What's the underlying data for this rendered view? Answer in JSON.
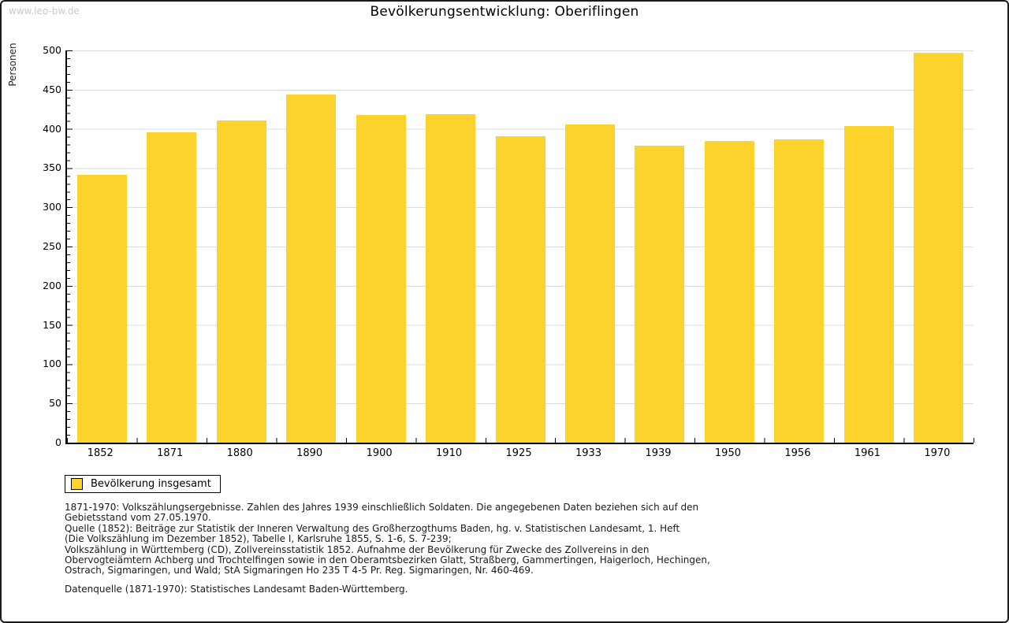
{
  "watermark": "www.leo-bw.de",
  "chart_data": {
    "type": "bar",
    "title": "Bevölkerungsentwicklung: Oberiflingen",
    "ylabel": "Personen",
    "xlabel": "",
    "categories": [
      "1852",
      "1871",
      "1880",
      "1890",
      "1900",
      "1910",
      "1925",
      "1933",
      "1939",
      "1950",
      "1956",
      "1961",
      "1970"
    ],
    "values": [
      341,
      396,
      411,
      444,
      418,
      419,
      391,
      406,
      379,
      385,
      387,
      404,
      497
    ],
    "ylim": [
      0,
      500
    ],
    "ytick_step": 50,
    "minor_tick_step": 10,
    "grid": "horizontal-gridlines-on",
    "legend_position": "bottom-left",
    "legend": {
      "label": "Bevölkerung insgesamt"
    },
    "bar_color": "#FCD32D"
  },
  "colors": {
    "bar": "#FCD32D",
    "gridline": "#DCDCDC",
    "axis": "#000000",
    "watermark": "#C9C9C9",
    "frame_border": "#1A1A1A"
  },
  "footnotes": {
    "lines": [
      "1871-1970: Volkszählungsergebnisse. Zahlen des Jahres 1939 einschließlich Soldaten. Die angegebenen Daten beziehen sich auf den",
      "Gebietsstand vom 27.05.1970.",
      "Quelle (1852): Beiträge zur Statistik der Inneren Verwaltung des Großherzogthums Baden, hg. v. Statistischen Landesamt, 1. Heft",
      "(Die Volkszählung im Dezember 1852), Tabelle I, Karlsruhe 1855, S. 1-6, S. 7-239;",
      "Volkszählung in Württemberg (CD), Zollvereinsstatistik 1852. Aufnahme der Bevölkerung für Zwecke des Zollvereins in den",
      "Obervogteiämtern Achberg und Trochtelfingen sowie in den Oberamtsbezirken Glatt, Straßberg, Gammertingen, Haigerloch, Hechingen,",
      "Ostrach, Sigmaringen, und Wald; StA Sigmaringen Ho 235 T 4-5 Pr. Reg. Sigmaringen, Nr. 460-469."
    ],
    "datasource": "Datenquelle (1871-1970): Statistisches Landesamt Baden-Württemberg."
  }
}
